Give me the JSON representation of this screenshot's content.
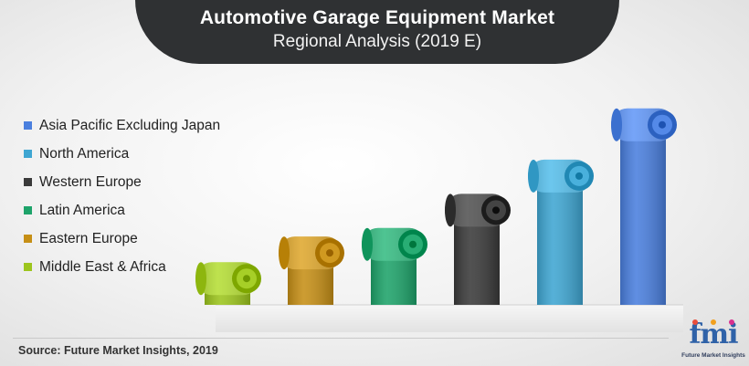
{
  "title": {
    "main": "Automotive Garage Equipment Market",
    "sub": "Regional Analysis (2019 E)"
  },
  "legend": [
    {
      "label": "Asia Pacific Excluding Japan",
      "color": "#4a7fde"
    },
    {
      "label": "North America",
      "color": "#3fa6d2"
    },
    {
      "label": "Western Europe",
      "color": "#3a3a3a"
    },
    {
      "label": "Latin America",
      "color": "#1ea36a"
    },
    {
      "label": "Eastern Europe",
      "color": "#c68f16"
    },
    {
      "label": "Middle East & Africa",
      "color": "#9cc51d"
    }
  ],
  "chart_data": {
    "type": "bar",
    "title": "Automotive Garage Equipment Market",
    "subtitle": "Regional Analysis (2019 E)",
    "categories": [
      "Middle East & Africa",
      "Eastern Europe",
      "Latin America",
      "Western Europe",
      "North America",
      "Asia Pacific Excluding Japan"
    ],
    "values": [
      1,
      1.6,
      1.8,
      2.6,
      3.4,
      4.6
    ],
    "colors": [
      "#9cc51d",
      "#c68f16",
      "#1ea36a",
      "#3a3a3a",
      "#3fa6d2",
      "#4a7fde"
    ],
    "ylim": [
      0,
      5
    ],
    "xlabel": "",
    "ylabel": "",
    "grid": false,
    "legend_position": "left"
  },
  "source": "Source: Future Market Insights, 2019",
  "logo": {
    "text": "fmi",
    "caption": "Future Market Insights"
  }
}
